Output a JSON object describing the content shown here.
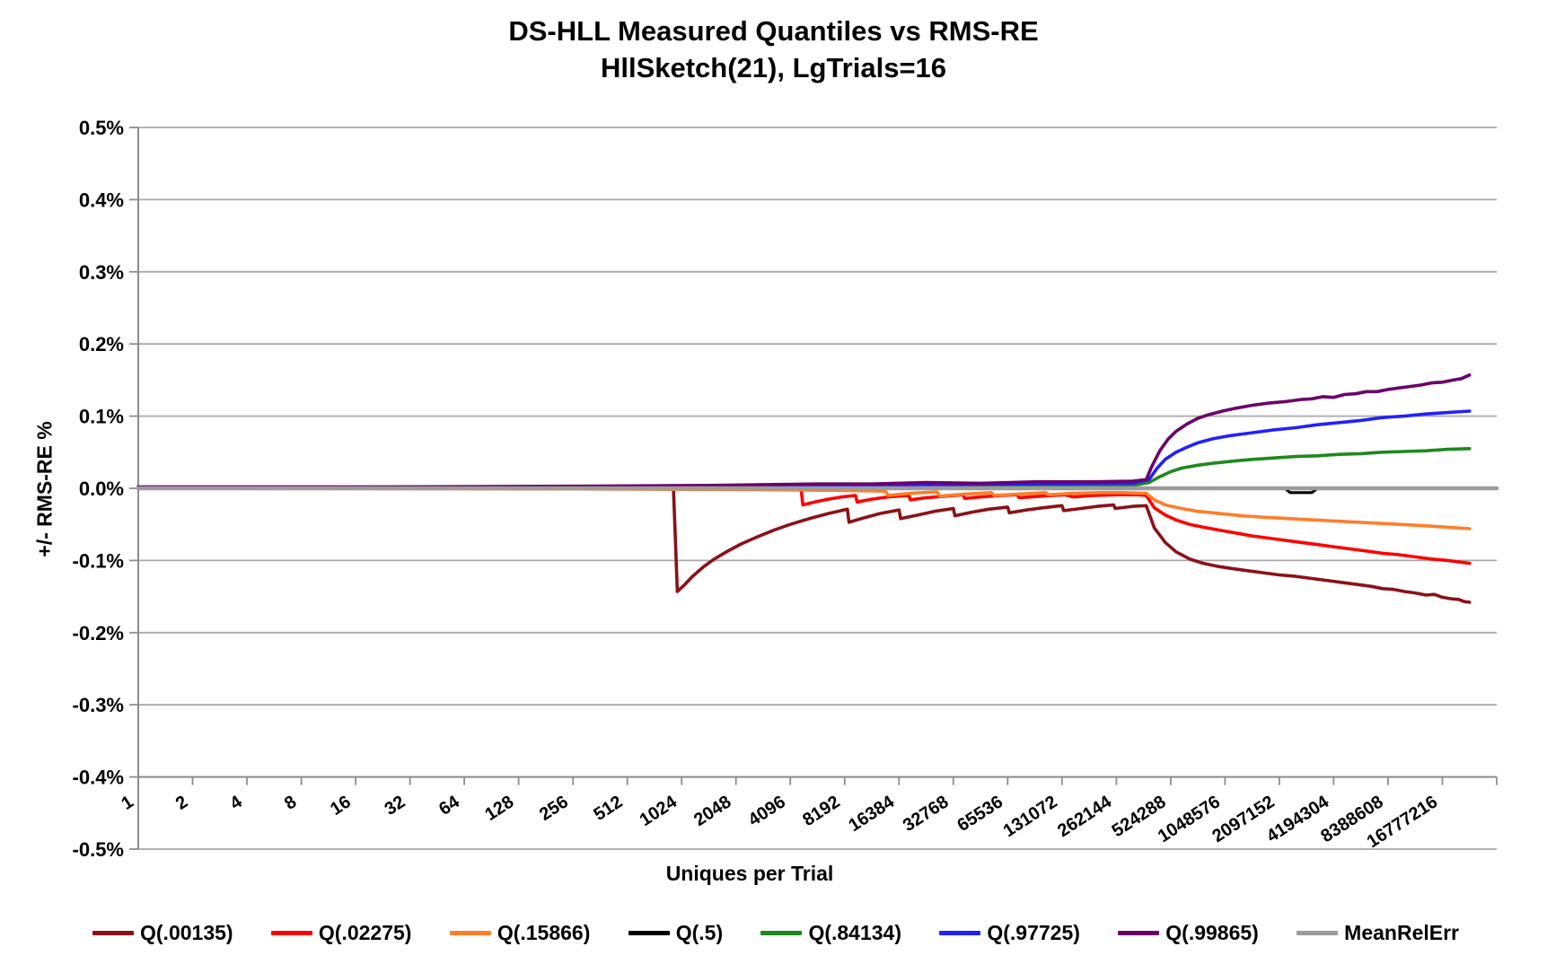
{
  "chart_data": {
    "type": "line",
    "title": "DS-HLL Measured Quantiles vs RMS-RE",
    "subtitle": "HllSketch(21), LgTrials=16",
    "xlabel": "Uniques per Trial",
    "ylabel": "+/-  RMS-RE %",
    "x_scale": "log2-categories",
    "x_categories": [
      "1",
      "2",
      "4",
      "8",
      "16",
      "32",
      "64",
      "128",
      "256",
      "512",
      "1024",
      "2048",
      "4096",
      "8192",
      "16384",
      "32768",
      "65536",
      "131072",
      "262144",
      "524288",
      "1048576",
      "2097152",
      "4194304",
      "8388608",
      "16777216"
    ],
    "ylim": [
      -0.5,
      0.5
    ],
    "x_axis_cross": -0.4,
    "grid": "horizontal",
    "legend_position": "bottom",
    "y_ticks": [
      {
        "value": 0.5,
        "label": "0.5%"
      },
      {
        "value": 0.4,
        "label": "0.4%"
      },
      {
        "value": 0.3,
        "label": "0.3%"
      },
      {
        "value": 0.2,
        "label": "0.2%"
      },
      {
        "value": 0.1,
        "label": "0.1%"
      },
      {
        "value": 0.0,
        "label": "0.0%"
      },
      {
        "value": -0.1,
        "label": "-0.1%"
      },
      {
        "value": -0.2,
        "label": "-0.2%"
      },
      {
        "value": -0.3,
        "label": "-0.3%"
      },
      {
        "value": -0.4,
        "label": "-0.4%"
      },
      {
        "value": -0.5,
        "label": "-0.5%"
      }
    ],
    "style": {
      "grid_color": "#A8A8A8",
      "axis_color": "#8C8C8C",
      "background": "#FFFFFF",
      "text_color": "#000000"
    },
    "point_format": "[log2(uniques), rms_re_percent]",
    "series": [
      {
        "id": "q00135",
        "name": "Q(.00135)",
        "color": "#8B1117",
        "width": 3.6,
        "points": [
          [
            -0.5,
            0
          ],
          [
            4,
            0
          ],
          [
            9.35,
            -0.001
          ],
          [
            9.42,
            -0.143
          ],
          [
            9.55,
            -0.134
          ],
          [
            9.7,
            -0.122
          ],
          [
            9.9,
            -0.109
          ],
          [
            10.1,
            -0.098
          ],
          [
            10.35,
            -0.087
          ],
          [
            10.6,
            -0.077
          ],
          [
            10.9,
            -0.067
          ],
          [
            11.2,
            -0.058
          ],
          [
            11.5,
            -0.05
          ],
          [
            11.85,
            -0.042
          ],
          [
            12.2,
            -0.035
          ],
          [
            12.55,
            -0.029
          ],
          [
            12.58,
            -0.047
          ],
          [
            12.85,
            -0.041
          ],
          [
            13.15,
            -0.035
          ],
          [
            13.5,
            -0.03
          ],
          [
            13.53,
            -0.042
          ],
          [
            13.85,
            -0.037
          ],
          [
            14.15,
            -0.032
          ],
          [
            14.5,
            -0.028
          ],
          [
            14.53,
            -0.038
          ],
          [
            14.85,
            -0.033
          ],
          [
            15.15,
            -0.029
          ],
          [
            15.5,
            -0.026
          ],
          [
            15.53,
            -0.034
          ],
          [
            15.85,
            -0.03
          ],
          [
            16.15,
            -0.027
          ],
          [
            16.5,
            -0.024
          ],
          [
            16.53,
            -0.031
          ],
          [
            16.85,
            -0.028
          ],
          [
            17.15,
            -0.025
          ],
          [
            17.45,
            -0.023
          ],
          [
            17.48,
            -0.028
          ],
          [
            17.8,
            -0.025
          ],
          [
            18.05,
            -0.024
          ],
          [
            18.2,
            -0.055
          ],
          [
            18.4,
            -0.075
          ],
          [
            18.6,
            -0.088
          ],
          [
            18.85,
            -0.098
          ],
          [
            19.1,
            -0.104
          ],
          [
            19.35,
            -0.108
          ],
          [
            19.6,
            -0.111
          ],
          [
            19.9,
            -0.114
          ],
          [
            20.2,
            -0.117
          ],
          [
            20.5,
            -0.12
          ],
          [
            20.8,
            -0.122
          ],
          [
            21.1,
            -0.125
          ],
          [
            21.4,
            -0.128
          ],
          [
            21.7,
            -0.131
          ],
          [
            22,
            -0.134
          ],
          [
            22.2,
            -0.136
          ],
          [
            22.4,
            -0.139
          ],
          [
            22.6,
            -0.14
          ],
          [
            22.8,
            -0.143
          ],
          [
            23,
            -0.145
          ],
          [
            23.2,
            -0.148
          ],
          [
            23.35,
            -0.147
          ],
          [
            23.5,
            -0.151
          ],
          [
            23.65,
            -0.153
          ],
          [
            23.8,
            -0.154
          ],
          [
            23.9,
            -0.157
          ],
          [
            24,
            -0.158
          ]
        ]
      },
      {
        "id": "q02275",
        "name": "Q(.02275)",
        "color": "#FE0000",
        "width": 3.6,
        "points": [
          [
            -0.5,
            0
          ],
          [
            8,
            0
          ],
          [
            11.1,
            -0.001
          ],
          [
            11.7,
            -0.001
          ],
          [
            11.73,
            -0.023
          ],
          [
            11.95,
            -0.019
          ],
          [
            12.2,
            -0.015
          ],
          [
            12.45,
            -0.012
          ],
          [
            12.7,
            -0.01
          ],
          [
            12.73,
            -0.019
          ],
          [
            13,
            -0.015
          ],
          [
            13.3,
            -0.012
          ],
          [
            13.68,
            -0.01
          ],
          [
            13.71,
            -0.016
          ],
          [
            14,
            -0.013
          ],
          [
            14.35,
            -0.011
          ],
          [
            14.68,
            -0.009
          ],
          [
            14.71,
            -0.014
          ],
          [
            15,
            -0.012
          ],
          [
            15.4,
            -0.01
          ],
          [
            15.68,
            -0.009
          ],
          [
            15.71,
            -0.013
          ],
          [
            16.1,
            -0.011
          ],
          [
            16.55,
            -0.009
          ],
          [
            16.71,
            -0.012
          ],
          [
            17.1,
            -0.01
          ],
          [
            17.5,
            -0.009
          ],
          [
            17.9,
            -0.009
          ],
          [
            18.05,
            -0.01
          ],
          [
            18.2,
            -0.027
          ],
          [
            18.4,
            -0.037
          ],
          [
            18.6,
            -0.044
          ],
          [
            18.85,
            -0.05
          ],
          [
            19.1,
            -0.054
          ],
          [
            19.4,
            -0.058
          ],
          [
            19.7,
            -0.062
          ],
          [
            20,
            -0.066
          ],
          [
            20.3,
            -0.069
          ],
          [
            20.6,
            -0.072
          ],
          [
            20.9,
            -0.075
          ],
          [
            21.2,
            -0.078
          ],
          [
            21.5,
            -0.081
          ],
          [
            21.8,
            -0.084
          ],
          [
            22.1,
            -0.087
          ],
          [
            22.4,
            -0.09
          ],
          [
            22.7,
            -0.092
          ],
          [
            23,
            -0.095
          ],
          [
            23.3,
            -0.098
          ],
          [
            23.6,
            -0.1
          ],
          [
            23.8,
            -0.102
          ],
          [
            24,
            -0.104
          ]
        ]
      },
      {
        "id": "q15866",
        "name": "Q(.15866)",
        "color": "#FF7D28",
        "width": 3.6,
        "points": [
          [
            -0.5,
            0
          ],
          [
            8,
            -0.001
          ],
          [
            11,
            -0.002
          ],
          [
            12.6,
            -0.003
          ],
          [
            13.25,
            -0.004
          ],
          [
            13.3,
            -0.01
          ],
          [
            13.7,
            -0.007
          ],
          [
            14.2,
            -0.005
          ],
          [
            14.25,
            -0.011
          ],
          [
            14.7,
            -0.008
          ],
          [
            15.2,
            -0.006
          ],
          [
            15.25,
            -0.01
          ],
          [
            15.7,
            -0.008
          ],
          [
            16.2,
            -0.006
          ],
          [
            16.25,
            -0.009
          ],
          [
            16.7,
            -0.007
          ],
          [
            17.2,
            -0.006
          ],
          [
            17.6,
            -0.006
          ],
          [
            18.05,
            -0.007
          ],
          [
            18.2,
            -0.016
          ],
          [
            18.4,
            -0.023
          ],
          [
            18.7,
            -0.028
          ],
          [
            19,
            -0.032
          ],
          [
            19.4,
            -0.035
          ],
          [
            19.8,
            -0.038
          ],
          [
            20.2,
            -0.04
          ],
          [
            20.7,
            -0.042
          ],
          [
            21.2,
            -0.044
          ],
          [
            21.7,
            -0.046
          ],
          [
            22.2,
            -0.048
          ],
          [
            22.7,
            -0.05
          ],
          [
            23.2,
            -0.052
          ],
          [
            23.6,
            -0.054
          ],
          [
            24,
            -0.056
          ]
        ]
      },
      {
        "id": "q5",
        "name": "Q(.5)",
        "color": "#000000",
        "width": 3.2,
        "points": [
          [
            -0.5,
            0
          ],
          [
            20.6,
            0
          ],
          [
            20.7,
            -0.006
          ],
          [
            21.1,
            -0.006
          ],
          [
            21.2,
            0
          ],
          [
            24,
            0
          ]
        ]
      },
      {
        "id": "q84134",
        "name": "Q(.84134)",
        "color": "#1C8A1C",
        "width": 3.6,
        "points": [
          [
            -0.5,
            0.001
          ],
          [
            10,
            0.001
          ],
          [
            14,
            0.003
          ],
          [
            17.8,
            0.004
          ],
          [
            18.1,
            0.008
          ],
          [
            18.3,
            0.016
          ],
          [
            18.5,
            0.023
          ],
          [
            18.7,
            0.028
          ],
          [
            19,
            0.032
          ],
          [
            19.3,
            0.035
          ],
          [
            19.7,
            0.038
          ],
          [
            20,
            0.04
          ],
          [
            20.4,
            0.042
          ],
          [
            20.8,
            0.044
          ],
          [
            21.2,
            0.045
          ],
          [
            21.6,
            0.047
          ],
          [
            22,
            0.048
          ],
          [
            22.4,
            0.05
          ],
          [
            22.8,
            0.051
          ],
          [
            23.2,
            0.052
          ],
          [
            23.6,
            0.054
          ],
          [
            24,
            0.055
          ]
        ]
      },
      {
        "id": "q97725",
        "name": "Q(.97725)",
        "color": "#2121FF",
        "width": 3.6,
        "points": [
          [
            -0.5,
            0.001
          ],
          [
            8,
            0.002
          ],
          [
            12,
            0.004
          ],
          [
            14,
            0.005
          ],
          [
            16,
            0.006
          ],
          [
            17.8,
            0.007
          ],
          [
            18.1,
            0.012
          ],
          [
            18.25,
            0.028
          ],
          [
            18.4,
            0.04
          ],
          [
            18.6,
            0.05
          ],
          [
            18.8,
            0.057
          ],
          [
            19,
            0.063
          ],
          [
            19.3,
            0.069
          ],
          [
            19.6,
            0.073
          ],
          [
            20,
            0.077
          ],
          [
            20.4,
            0.081
          ],
          [
            20.8,
            0.084
          ],
          [
            21.2,
            0.088
          ],
          [
            21.6,
            0.091
          ],
          [
            22,
            0.094
          ],
          [
            22.4,
            0.098
          ],
          [
            22.8,
            0.1
          ],
          [
            23.2,
            0.103
          ],
          [
            23.6,
            0.105
          ],
          [
            24,
            0.107
          ]
        ]
      },
      {
        "id": "q99865",
        "name": "Q(.99865)",
        "color": "#6B006B",
        "width": 3.6,
        "points": [
          [
            -0.5,
            0.002
          ],
          [
            4,
            0.002
          ],
          [
            8,
            0.003
          ],
          [
            10,
            0.004
          ],
          [
            12,
            0.006
          ],
          [
            13,
            0.006
          ],
          [
            14,
            0.008
          ],
          [
            15,
            0.007
          ],
          [
            16,
            0.009
          ],
          [
            17,
            0.009
          ],
          [
            17.8,
            0.01
          ],
          [
            18.05,
            0.012
          ],
          [
            18.15,
            0.03
          ],
          [
            18.3,
            0.052
          ],
          [
            18.45,
            0.068
          ],
          [
            18.6,
            0.079
          ],
          [
            18.8,
            0.089
          ],
          [
            19,
            0.097
          ],
          [
            19.2,
            0.102
          ],
          [
            19.45,
            0.107
          ],
          [
            19.7,
            0.111
          ],
          [
            20,
            0.115
          ],
          [
            20.3,
            0.118
          ],
          [
            20.6,
            0.12
          ],
          [
            20.9,
            0.123
          ],
          [
            21.1,
            0.124
          ],
          [
            21.3,
            0.127
          ],
          [
            21.5,
            0.126
          ],
          [
            21.7,
            0.13
          ],
          [
            21.9,
            0.131
          ],
          [
            22.1,
            0.134
          ],
          [
            22.3,
            0.134
          ],
          [
            22.5,
            0.137
          ],
          [
            22.7,
            0.139
          ],
          [
            22.9,
            0.141
          ],
          [
            23.1,
            0.143
          ],
          [
            23.3,
            0.146
          ],
          [
            23.5,
            0.147
          ],
          [
            23.7,
            0.15
          ],
          [
            23.85,
            0.152
          ],
          [
            24,
            0.157
          ]
        ]
      },
      {
        "id": "meanrelerr",
        "name": "MeanRelErr",
        "color": "#9B9B9B",
        "width": 4.6,
        "points": [
          [
            -0.5,
            0
          ],
          [
            24.5,
            0
          ]
        ]
      }
    ]
  }
}
